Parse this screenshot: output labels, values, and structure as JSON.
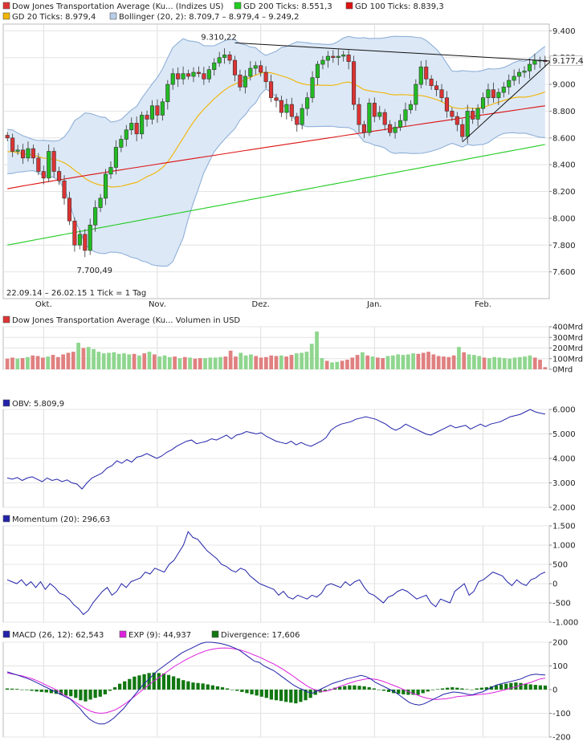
{
  "colors": {
    "up": "#22bb22",
    "down": "#dd3333",
    "gd200": "#22cc22",
    "gd100": "#dd1111",
    "gd20": "#f2b400",
    "boll_fill": "#dce8f6",
    "boll_line": "#8fb0d8",
    "obv": "#2222aa",
    "momentum": "#2222aa",
    "macd": "#2222aa",
    "exp": "#dd22dd",
    "div": "#117711",
    "vol_up": "#8fd68f",
    "vol_down": "#e08080"
  },
  "chart_data": [
    {
      "type": "candlestick",
      "title": "Dow Jones Transportation Average (Ku... (Indizes US)",
      "legend": [
        {
          "id": "main",
          "label": "Dow Jones Transportation Average (Ku... (Indizes US)",
          "color": "#dd3333"
        },
        {
          "id": "gd200",
          "label": "GD 200 Ticks: 8.551,3",
          "color": "#22cc22"
        },
        {
          "id": "gd100",
          "label": "GD 100 Ticks: 8.839,3",
          "color": "#dd1111"
        },
        {
          "id": "gd20",
          "label": "GD 20 Ticks: 8.979,4",
          "color": "#f2b400"
        },
        {
          "id": "boll",
          "label": "Bollinger (20, 2): 8.709,7 – 8.979,4 – 9.249,2",
          "color": "#b8cdea"
        }
      ],
      "ylim": [
        7400,
        9450
      ],
      "yticks": [
        7600,
        7800,
        8000,
        8200,
        8400,
        8600,
        8800,
        9000,
        9200,
        9400
      ],
      "ytick_labels": [
        "7.600",
        "7.800",
        "8.000",
        "8.200",
        "8.400",
        "8.600",
        "8.800",
        "9.000",
        "9.200",
        "9.400"
      ],
      "xticks": [
        {
          "i": 7,
          "label": "Okt."
        },
        {
          "i": 29,
          "label": "Nov."
        },
        {
          "i": 49,
          "label": "Dez."
        },
        {
          "i": 71,
          "label": "Jan."
        },
        {
          "i": 92,
          "label": "Feb."
        }
      ],
      "closes": [
        8600,
        8500,
        8510,
        8450,
        8520,
        8450,
        8350,
        8300,
        8500,
        8350,
        8280,
        8150,
        7980,
        7800,
        7880,
        7760,
        7950,
        8080,
        8150,
        8330,
        8380,
        8530,
        8590,
        8660,
        8710,
        8630,
        8770,
        8740,
        8840,
        8770,
        8870,
        9000,
        9080,
        9040,
        9080,
        9060,
        9090,
        9080,
        9040,
        9110,
        9160,
        9200,
        9220,
        9180,
        9070,
        8980,
        9060,
        9120,
        9140,
        9090,
        9020,
        8900,
        8880,
        8790,
        8850,
        8760,
        8700,
        8820,
        8900,
        9050,
        9150,
        9180,
        9210,
        9200,
        9210,
        9220,
        9170,
        8850,
        8700,
        8640,
        8860,
        8760,
        8790,
        8700,
        8640,
        8680,
        8730,
        8810,
        8850,
        9000,
        9130,
        9040,
        8990,
        8960,
        8900,
        8800,
        8760,
        8700,
        8610,
        8800,
        8740,
        8820,
        8900,
        8960,
        8900,
        8940,
        8980,
        9030,
        9060,
        9090,
        9100,
        9150,
        9180,
        9180,
        9170
      ],
      "close_last": "9.177,4",
      "annotations": {
        "high_label": "9.310,22",
        "high_index": 44,
        "high_value": 9310,
        "low_label": "7.700,49",
        "low_index": 15,
        "low_value": 7700
      },
      "trendlines": [
        {
          "from": [
            44,
            9310
          ],
          "to": [
            107,
            9170
          ]
        },
        {
          "from": [
            88,
            8570
          ],
          "to": [
            105,
            9170
          ]
        }
      ],
      "date_range": "22.09.14 – 26.02.15   1 Tick = 1 Tag"
    },
    {
      "type": "bar",
      "title": "Dow Jones Transportation Average (Ku... Volumen in USD",
      "ylim": [
        0,
        400
      ],
      "yticks": [
        0,
        100,
        200,
        300,
        400
      ],
      "ytick_labels": [
        "0Mrd",
        "100Mrd",
        "200Mrd",
        "300Mrd",
        "400Mrd"
      ],
      "values": [
        100,
        110,
        100,
        105,
        115,
        130,
        125,
        110,
        120,
        135,
        115,
        140,
        155,
        165,
        250,
        200,
        210,
        190,
        165,
        150,
        155,
        160,
        145,
        150,
        140,
        145,
        130,
        150,
        165,
        140,
        120,
        130,
        115,
        120,
        105,
        115,
        110,
        100,
        105,
        105,
        110,
        110,
        115,
        120,
        175,
        120,
        155,
        130,
        140,
        125,
        110,
        115,
        130,
        125,
        130,
        120,
        135,
        150,
        155,
        165,
        240,
        355,
        105,
        80,
        65,
        70,
        80,
        90,
        110,
        135,
        160,
        130,
        120,
        110,
        105,
        125,
        130,
        140,
        135,
        140,
        150,
        145,
        155,
        165,
        140,
        125,
        120,
        115,
        130,
        210,
        160,
        140,
        135,
        125,
        110,
        105,
        115,
        110,
        105,
        100,
        110,
        115,
        120,
        130,
        110,
        90,
        20
      ]
    },
    {
      "type": "line",
      "title": "OBV: 5.809,9",
      "ylim": [
        2000,
        6000
      ],
      "yticks": [
        2000,
        3000,
        4000,
        5000,
        6000
      ],
      "ytick_labels": [
        "2.000",
        "3.000",
        "4.000",
        "5.000",
        "6.000"
      ],
      "values": [
        3200,
        3150,
        3220,
        3100,
        3200,
        3250,
        3150,
        3050,
        3200,
        3100,
        3150,
        3050,
        3120,
        3000,
        2950,
        2750,
        3000,
        3200,
        3300,
        3400,
        3600,
        3700,
        3900,
        3800,
        3950,
        3850,
        4050,
        4100,
        4200,
        4100,
        4000,
        4100,
        4250,
        4350,
        4500,
        4600,
        4700,
        4750,
        4600,
        4650,
        4700,
        4800,
        4750,
        4850,
        4950,
        4800,
        4950,
        5000,
        5100,
        5050,
        5000,
        5050,
        4900,
        4800,
        4700,
        4650,
        4600,
        4700,
        4550,
        4650,
        4550,
        4500,
        4600,
        4700,
        4850,
        5150,
        5300,
        5400,
        5450,
        5500,
        5600,
        5650,
        5700,
        5650,
        5600,
        5500,
        5400,
        5250,
        5150,
        5250,
        5400,
        5300,
        5200,
        5100,
        5000,
        4950,
        5050,
        5150,
        5250,
        5350,
        5250,
        5300,
        5350,
        5200,
        5300,
        5400,
        5300,
        5400,
        5450,
        5500,
        5600,
        5700,
        5750,
        5800,
        5900,
        6000,
        5900,
        5850,
        5810
      ]
    },
    {
      "type": "line",
      "title": "Momentum (20): 296,63",
      "ylim": [
        -1000,
        1500
      ],
      "yticks": [
        -1000,
        -500,
        0,
        500,
        1000,
        1500
      ],
      "ytick_labels": [
        "-1.000",
        "-500",
        "0",
        "500",
        "1.000",
        "1.500"
      ],
      "values": [
        100,
        50,
        0,
        100,
        -50,
        50,
        -100,
        50,
        -150,
        0,
        -100,
        -250,
        -300,
        -400,
        -550,
        -650,
        -800,
        -700,
        -500,
        -350,
        -200,
        -100,
        -300,
        -200,
        0,
        -100,
        50,
        100,
        150,
        300,
        250,
        400,
        350,
        300,
        500,
        600,
        800,
        1000,
        1350,
        1200,
        1150,
        1000,
        850,
        750,
        650,
        500,
        450,
        350,
        300,
        400,
        350,
        200,
        100,
        0,
        -50,
        -100,
        -150,
        -300,
        -200,
        -350,
        -400,
        -300,
        -350,
        -400,
        -300,
        -350,
        -250,
        -50,
        0,
        -50,
        -100,
        50,
        -50,
        50,
        100,
        -100,
        -250,
        -300,
        -400,
        -500,
        -350,
        -300,
        -200,
        -150,
        -200,
        -300,
        -400,
        -350,
        -300,
        -500,
        -600,
        -400,
        -450,
        -500,
        -200,
        -100,
        0,
        -300,
        -200,
        50,
        100,
        200,
        300,
        250,
        200,
        50,
        -50,
        100,
        0,
        -50,
        100,
        150,
        250,
        300
      ]
    },
    {
      "type": "line",
      "title": "MACD (26, 12): 62,543",
      "ylim": [
        -200,
        200
      ],
      "yticks": [
        -200,
        -100,
        0,
        100,
        200
      ],
      "ytick_labels": [
        "-200",
        "-100",
        "0",
        "100",
        "200"
      ],
      "series": [
        {
          "name": "MACD (26, 12): 62,543",
          "values": [
            75,
            68,
            62,
            55,
            48,
            40,
            30,
            20,
            10,
            0,
            -10,
            -20,
            -30,
            -40,
            -60,
            -80,
            -105,
            -125,
            -138,
            -145,
            -145,
            -135,
            -120,
            -100,
            -80,
            -55,
            -30,
            -5,
            20,
            40,
            60,
            80,
            95,
            110,
            125,
            140,
            155,
            165,
            175,
            185,
            195,
            200,
            200,
            198,
            195,
            190,
            183,
            175,
            165,
            150,
            135,
            120,
            115,
            100,
            90,
            80,
            65,
            50,
            35,
            20,
            8,
            0,
            -10,
            -15,
            -5,
            5,
            15,
            25,
            32,
            38,
            45,
            50,
            55,
            60,
            55,
            45,
            30,
            20,
            10,
            0,
            -10,
            -25,
            -40,
            -55,
            -62,
            -65,
            -60,
            -50,
            -40,
            -30,
            -20,
            -15,
            -10,
            -12,
            -15,
            -20,
            -22,
            -15,
            -10,
            0,
            10,
            20,
            25,
            30,
            35,
            40,
            45,
            55,
            62,
            65,
            63,
            62
          ]
        },
        {
          "name": "EXP (9): 44,937",
          "values": [
            70,
            66,
            62,
            58,
            52,
            46,
            38,
            28,
            18,
            8,
            -2,
            -15,
            -28,
            -42,
            -56,
            -70,
            -82,
            -92,
            -98,
            -100,
            -98,
            -92,
            -84,
            -72,
            -58,
            -42,
            -25,
            -8,
            8,
            25,
            40,
            55,
            70,
            85,
            100,
            112,
            124,
            135,
            145,
            154,
            162,
            168,
            172,
            175,
            176,
            175,
            172,
            168,
            162,
            155,
            146,
            138,
            128,
            118,
            108,
            96,
            84,
            70,
            56,
            40,
            26,
            12,
            2,
            -5,
            -8,
            -5,
            2,
            10,
            18,
            25,
            32,
            38,
            42,
            46,
            45,
            42,
            36,
            28,
            20,
            12,
            3,
            -6,
            -15,
            -22,
            -30,
            -36,
            -40,
            -42,
            -40,
            -38,
            -35,
            -30,
            -28,
            -26,
            -24,
            -22,
            -20,
            -18,
            -15,
            -10,
            -5,
            0,
            6,
            12,
            18,
            24,
            30,
            38,
            45,
            48
          ]
        },
        {
          "name": "Divergence: 17,606",
          "type": "bar",
          "values": [
            5,
            4,
            3,
            0,
            -2,
            -5,
            -8,
            -10,
            -12,
            -15,
            -18,
            -22,
            -25,
            -28,
            -35,
            -45,
            -50,
            -42,
            -35,
            -30,
            -20,
            -5,
            10,
            25,
            35,
            45,
            55,
            60,
            65,
            70,
            72,
            70,
            68,
            62,
            56,
            48,
            40,
            35,
            30,
            28,
            26,
            22,
            18,
            14,
            10,
            5,
            0,
            -5,
            -10,
            -15,
            -20,
            -25,
            -30,
            -35,
            -42,
            -45,
            -48,
            -52,
            -55,
            -58,
            -52,
            -45,
            -35,
            -22,
            -12,
            -5,
            2,
            8,
            12,
            15,
            18,
            18,
            16,
            14,
            10,
            5,
            0,
            -5,
            -10,
            -15,
            -18,
            -20,
            -22,
            -22,
            -22,
            -15,
            -8,
            -2,
            2,
            5,
            8,
            10,
            8,
            5,
            2,
            0,
            5,
            8,
            10,
            14,
            18,
            22,
            25,
            28,
            30,
            28,
            25,
            22,
            20,
            18,
            17
          ]
        }
      ]
    }
  ]
}
